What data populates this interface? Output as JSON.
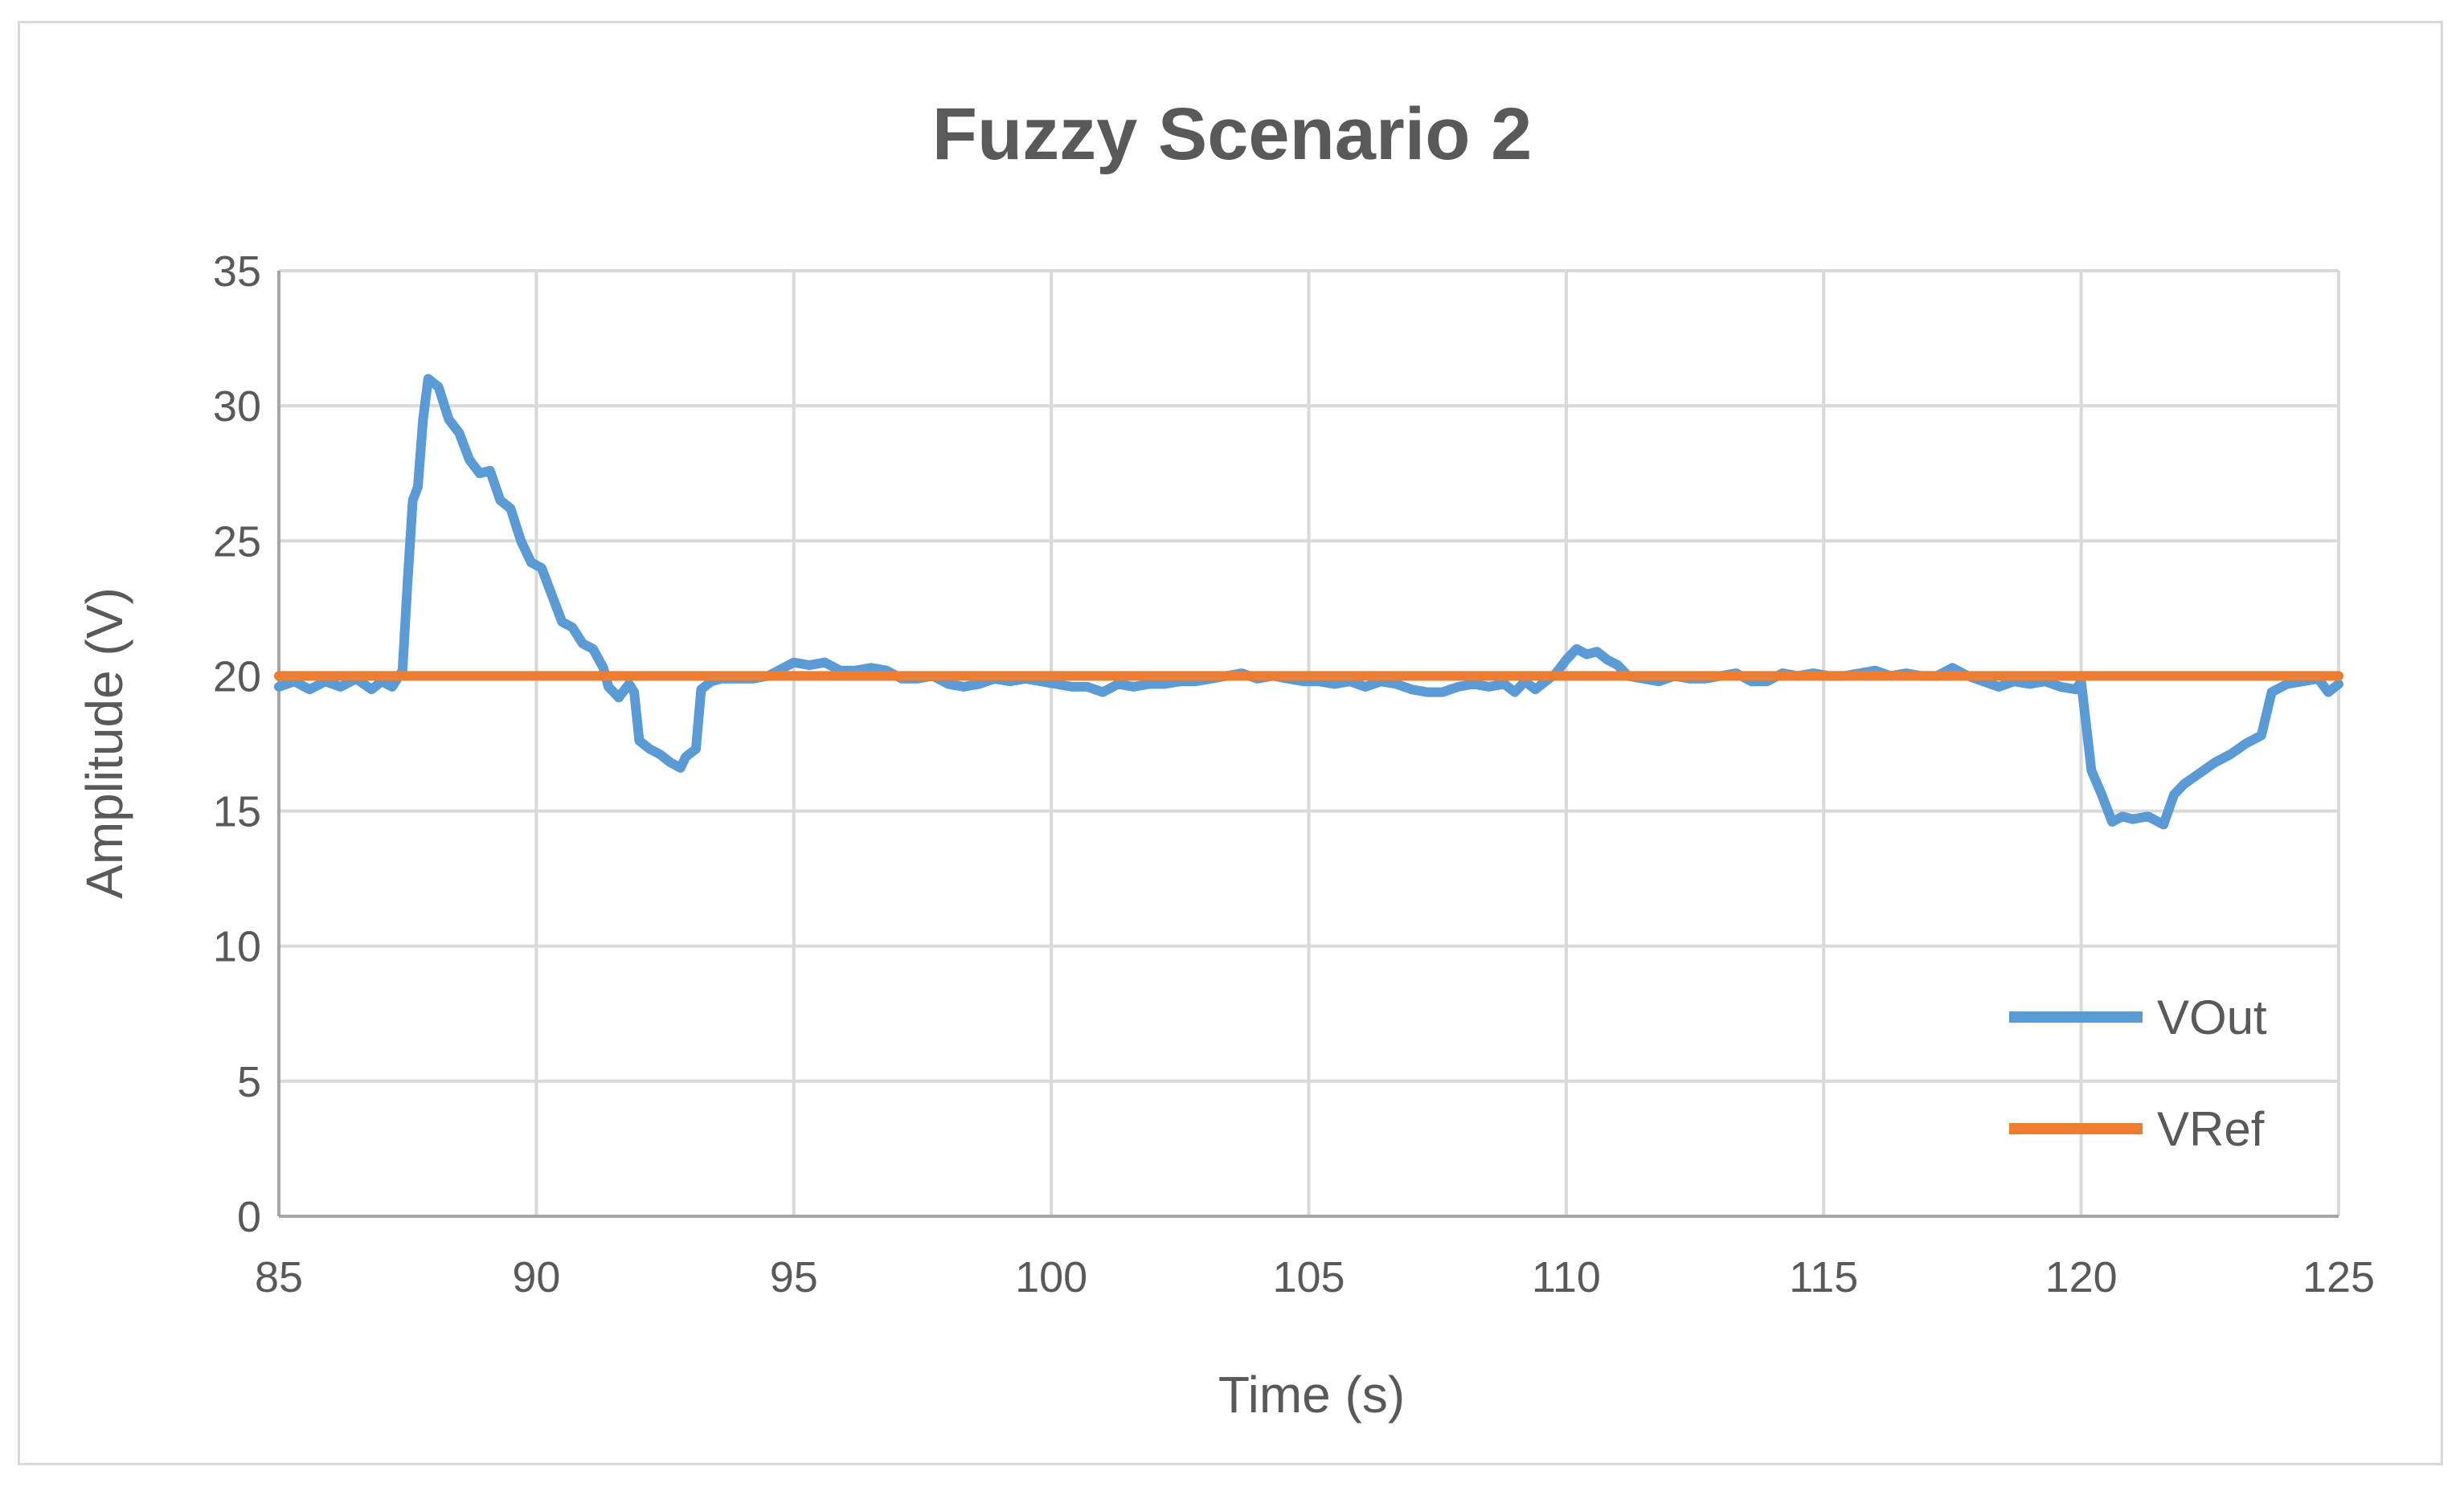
{
  "chart_data": {
    "type": "line",
    "title": "Fuzzy Scenario 2",
    "xlabel": "Time (s)",
    "ylabel": "Amplitude (V)",
    "xlim": [
      85,
      125
    ],
    "ylim": [
      0,
      35
    ],
    "x_ticks": [
      "85",
      "90",
      "95",
      "100",
      "105",
      "110",
      "115",
      "120",
      "125"
    ],
    "y_ticks": [
      "0",
      "5",
      "10",
      "15",
      "20",
      "25",
      "30",
      "35"
    ],
    "grid": true,
    "legend_position": "bottom-right",
    "series": [
      {
        "name": "VOut",
        "color": "#5b9bd5",
        "points": [
          [
            85.0,
            19.6
          ],
          [
            85.3,
            19.8
          ],
          [
            85.6,
            19.5
          ],
          [
            85.9,
            19.8
          ],
          [
            86.2,
            19.6
          ],
          [
            86.5,
            19.9
          ],
          [
            86.8,
            19.5
          ],
          [
            87.0,
            19.8
          ],
          [
            87.2,
            19.6
          ],
          [
            87.4,
            20.2
          ],
          [
            87.5,
            23.5
          ],
          [
            87.6,
            26.5
          ],
          [
            87.7,
            27.0
          ],
          [
            87.8,
            29.5
          ],
          [
            87.9,
            31.0
          ],
          [
            88.1,
            30.7
          ],
          [
            88.3,
            29.5
          ],
          [
            88.5,
            29.0
          ],
          [
            88.7,
            28.0
          ],
          [
            88.9,
            27.5
          ],
          [
            89.1,
            27.6
          ],
          [
            89.3,
            26.5
          ],
          [
            89.5,
            26.2
          ],
          [
            89.7,
            25.0
          ],
          [
            89.9,
            24.2
          ],
          [
            90.1,
            24.0
          ],
          [
            90.3,
            23.0
          ],
          [
            90.5,
            22.0
          ],
          [
            90.7,
            21.8
          ],
          [
            90.9,
            21.2
          ],
          [
            91.1,
            21.0
          ],
          [
            91.3,
            20.3
          ],
          [
            91.4,
            19.6
          ],
          [
            91.6,
            19.2
          ],
          [
            91.8,
            19.7
          ],
          [
            91.9,
            19.4
          ],
          [
            92.0,
            17.6
          ],
          [
            92.2,
            17.3
          ],
          [
            92.4,
            17.1
          ],
          [
            92.6,
            16.8
          ],
          [
            92.8,
            16.6
          ],
          [
            92.9,
            17.0
          ],
          [
            93.1,
            17.3
          ],
          [
            93.2,
            19.5
          ],
          [
            93.4,
            19.8
          ],
          [
            93.6,
            19.9
          ],
          [
            93.9,
            19.9
          ],
          [
            94.2,
            19.9
          ],
          [
            94.5,
            20.0
          ],
          [
            94.8,
            20.3
          ],
          [
            95.0,
            20.5
          ],
          [
            95.3,
            20.4
          ],
          [
            95.6,
            20.5
          ],
          [
            95.9,
            20.2
          ],
          [
            96.2,
            20.2
          ],
          [
            96.5,
            20.3
          ],
          [
            96.8,
            20.2
          ],
          [
            97.1,
            19.9
          ],
          [
            97.4,
            19.9
          ],
          [
            97.7,
            20.0
          ],
          [
            98.0,
            19.7
          ],
          [
            98.3,
            19.6
          ],
          [
            98.6,
            19.7
          ],
          [
            98.9,
            19.9
          ],
          [
            99.2,
            19.8
          ],
          [
            99.5,
            19.9
          ],
          [
            99.8,
            19.8
          ],
          [
            100.1,
            19.7
          ],
          [
            100.4,
            19.6
          ],
          [
            100.7,
            19.6
          ],
          [
            101.0,
            19.4
          ],
          [
            101.3,
            19.7
          ],
          [
            101.6,
            19.6
          ],
          [
            101.9,
            19.7
          ],
          [
            102.2,
            19.7
          ],
          [
            102.5,
            19.8
          ],
          [
            102.8,
            19.8
          ],
          [
            103.1,
            19.9
          ],
          [
            103.4,
            20.0
          ],
          [
            103.7,
            20.1
          ],
          [
            104.0,
            19.9
          ],
          [
            104.3,
            20.0
          ],
          [
            104.6,
            19.9
          ],
          [
            104.9,
            19.8
          ],
          [
            105.2,
            19.8
          ],
          [
            105.5,
            19.7
          ],
          [
            105.8,
            19.8
          ],
          [
            106.1,
            19.6
          ],
          [
            106.4,
            19.8
          ],
          [
            106.7,
            19.7
          ],
          [
            107.0,
            19.5
          ],
          [
            107.3,
            19.4
          ],
          [
            107.6,
            19.4
          ],
          [
            107.9,
            19.6
          ],
          [
            108.2,
            19.7
          ],
          [
            108.5,
            19.6
          ],
          [
            108.8,
            19.7
          ],
          [
            109.0,
            19.4
          ],
          [
            109.2,
            19.8
          ],
          [
            109.4,
            19.5
          ],
          [
            109.6,
            19.8
          ],
          [
            109.8,
            20.1
          ],
          [
            110.0,
            20.6
          ],
          [
            110.2,
            21.0
          ],
          [
            110.4,
            20.8
          ],
          [
            110.6,
            20.9
          ],
          [
            110.8,
            20.6
          ],
          [
            111.0,
            20.4
          ],
          [
            111.2,
            20.0
          ],
          [
            111.5,
            19.9
          ],
          [
            111.8,
            19.8
          ],
          [
            112.1,
            20.0
          ],
          [
            112.4,
            19.9
          ],
          [
            112.7,
            19.9
          ],
          [
            113.0,
            20.0
          ],
          [
            113.3,
            20.1
          ],
          [
            113.6,
            19.8
          ],
          [
            113.9,
            19.8
          ],
          [
            114.2,
            20.1
          ],
          [
            114.5,
            20.0
          ],
          [
            114.8,
            20.1
          ],
          [
            115.1,
            20.0
          ],
          [
            115.4,
            20.0
          ],
          [
            115.7,
            20.1
          ],
          [
            116.0,
            20.2
          ],
          [
            116.3,
            20.0
          ],
          [
            116.6,
            20.1
          ],
          [
            116.9,
            20.0
          ],
          [
            117.2,
            20.0
          ],
          [
            117.5,
            20.3
          ],
          [
            117.8,
            20.0
          ],
          [
            118.1,
            19.8
          ],
          [
            118.4,
            19.6
          ],
          [
            118.7,
            19.8
          ],
          [
            119.0,
            19.7
          ],
          [
            119.3,
            19.8
          ],
          [
            119.6,
            19.6
          ],
          [
            119.9,
            19.5
          ],
          [
            120.0,
            19.8
          ],
          [
            120.2,
            16.5
          ],
          [
            120.4,
            15.6
          ],
          [
            120.6,
            14.6
          ],
          [
            120.8,
            14.8
          ],
          [
            121.0,
            14.7
          ],
          [
            121.3,
            14.8
          ],
          [
            121.6,
            14.5
          ],
          [
            121.8,
            15.6
          ],
          [
            122.0,
            16.0
          ],
          [
            122.3,
            16.4
          ],
          [
            122.6,
            16.8
          ],
          [
            122.9,
            17.1
          ],
          [
            123.2,
            17.5
          ],
          [
            123.5,
            17.8
          ],
          [
            123.7,
            19.4
          ],
          [
            124.0,
            19.7
          ],
          [
            124.3,
            19.8
          ],
          [
            124.6,
            19.9
          ],
          [
            124.8,
            19.4
          ],
          [
            125.0,
            19.7
          ]
        ]
      },
      {
        "name": "VRef",
        "color": "#ed7d31",
        "points": [
          [
            85.0,
            20.0
          ],
          [
            125.0,
            20.0
          ]
        ]
      }
    ]
  }
}
